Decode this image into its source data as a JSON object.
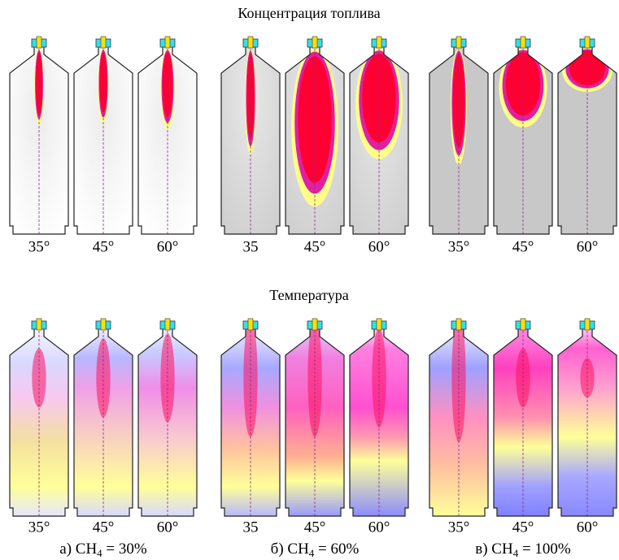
{
  "titles": {
    "fuel_concentration": "Концентрация топлива",
    "temperature": "Температура"
  },
  "rows": [
    {
      "groups": [
        {
          "labels": [
            "35°",
            "45°",
            "60°"
          ]
        },
        {
          "labels": [
            "35",
            "45°",
            "60°"
          ]
        },
        {
          "labels": [
            "35°",
            "45°",
            "60°"
          ]
        }
      ]
    },
    {
      "groups": [
        {
          "labels": [
            "35°",
            "45°",
            "60°"
          ]
        },
        {
          "labels": [
            "35",
            "45°",
            "60°"
          ]
        },
        {
          "labels": [
            "35°",
            "45°",
            "60°"
          ]
        }
      ]
    }
  ],
  "captions": [
    {
      "prefix": "а) CH",
      "sub": "4",
      "suffix": " = 30%"
    },
    {
      "prefix": "б) CH",
      "sub": "4",
      "suffix": " = 60%"
    },
    {
      "prefix": "в) CH",
      "sub": "4",
      "suffix": " = 100%"
    }
  ]
}
